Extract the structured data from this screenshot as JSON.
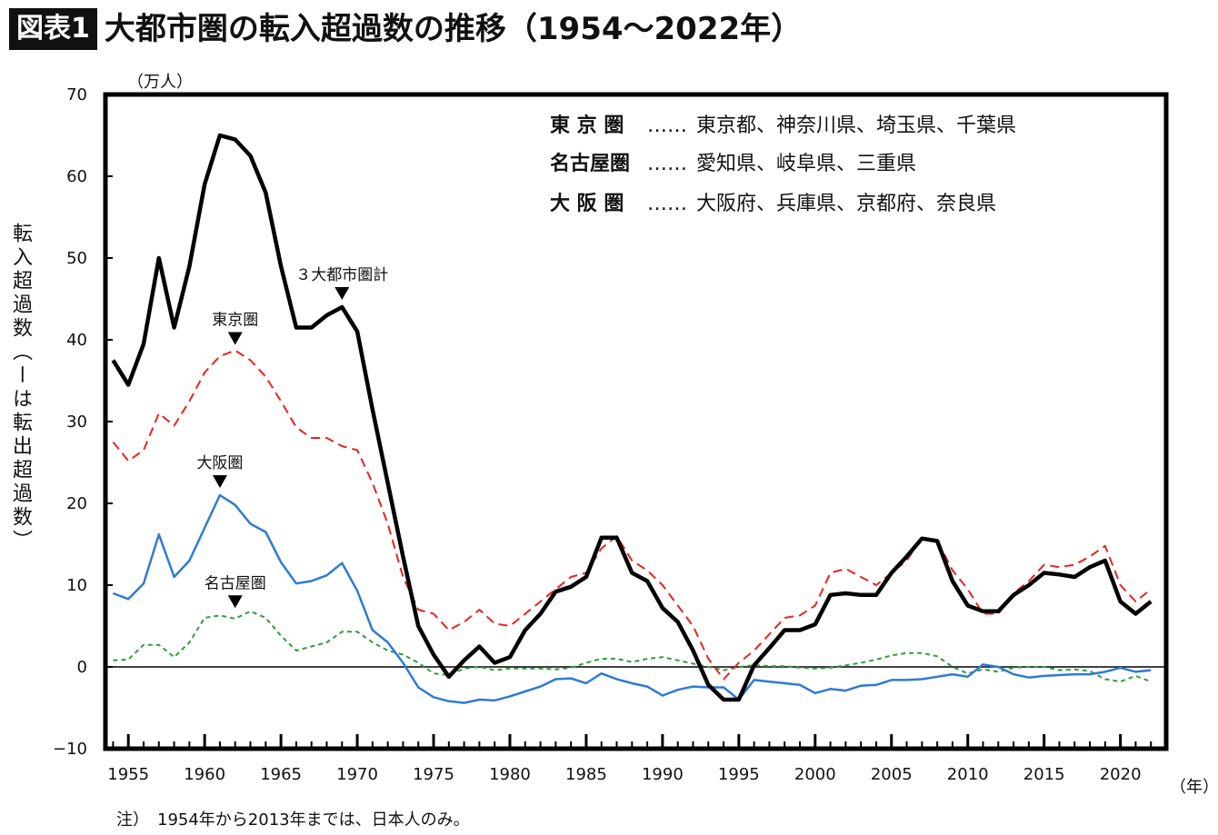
{
  "header": {
    "badge": "図表1",
    "title": "大都市圏の転入超過数の推移（1954〜2022年）"
  },
  "axis": {
    "unit": "（万人）",
    "ylabel": "転入超過数（ーは転出超過数）",
    "xunit": "（年）"
  },
  "note": "注）　1954年から2013年までは、日本人のみ。",
  "legend": [
    {
      "key": "東 京 圏",
      "dots": "……",
      "value": "東京都、神奈川県、埼玉県、千葉県"
    },
    {
      "key": "名古屋圏",
      "dots": "……",
      "value": "愛知県、岐阜県、三重県"
    },
    {
      "key": "大 阪 圏",
      "dots": "……",
      "value": "大阪府、兵庫県、京都府、奈良県"
    }
  ],
  "annotations": [
    {
      "text": "３大都市圏計",
      "year": 1969,
      "value": 44
    },
    {
      "text": "東京圏",
      "year": 1962,
      "value": 38.5
    },
    {
      "text": "大阪圏",
      "year": 1961,
      "value": 21
    },
    {
      "text": "名古屋圏",
      "year": 1962,
      "value": 6.3
    }
  ],
  "chart_data": {
    "type": "line",
    "ylim": [
      -10,
      70
    ],
    "yticks": [
      70,
      60,
      50,
      40,
      30,
      20,
      10,
      0,
      -10
    ],
    "xlim": [
      1953.5,
      2023
    ],
    "xticks": [
      1955,
      1960,
      1965,
      1970,
      1975,
      1980,
      1985,
      1990,
      1995,
      2000,
      2005,
      2010,
      2015,
      2020
    ],
    "x": [
      1954,
      1955,
      1956,
      1957,
      1958,
      1959,
      1960,
      1961,
      1962,
      1963,
      1964,
      1965,
      1966,
      1967,
      1968,
      1969,
      1970,
      1971,
      1972,
      1973,
      1974,
      1975,
      1976,
      1977,
      1978,
      1979,
      1980,
      1981,
      1982,
      1983,
      1984,
      1985,
      1986,
      1987,
      1988,
      1989,
      1990,
      1991,
      1992,
      1993,
      1994,
      1995,
      1996,
      1997,
      1998,
      1999,
      2000,
      2001,
      2002,
      2003,
      2004,
      2005,
      2006,
      2007,
      2008,
      2009,
      2010,
      2011,
      2012,
      2013,
      2014,
      2015,
      2016,
      2017,
      2018,
      2019,
      2020,
      2021,
      2022
    ],
    "series": [
      {
        "name": "３大都市圏計",
        "color": "#000000",
        "style": "solid-thick",
        "values": [
          37.5,
          34.5,
          39.5,
          50,
          41.5,
          49,
          59,
          65,
          64.5,
          62.5,
          58,
          49,
          41.5,
          41.5,
          43,
          44,
          41,
          31.5,
          22.5,
          13.5,
          5,
          1.5,
          -1.2,
          0.8,
          2.5,
          0.5,
          1.2,
          4.5,
          6.5,
          9.2,
          9.8,
          11,
          15.8,
          15.8,
          11.5,
          10.5,
          7.2,
          5.5,
          2,
          -2.2,
          -4,
          -4,
          0.2,
          2.3,
          4.5,
          4.5,
          5.2,
          8.8,
          9,
          8.8,
          8.8,
          11.5,
          13.5,
          15.7,
          15.4,
          10.5,
          7.5,
          6.8,
          6.8,
          8.8,
          10,
          11.5,
          11.3,
          11,
          12.2,
          13,
          8,
          6.5,
          8
        ]
      },
      {
        "name": "東京圏",
        "color": "#e8231f",
        "style": "dashed",
        "values": [
          27.5,
          25.2,
          26.5,
          31,
          29.5,
          32.5,
          36,
          38,
          38.7,
          37.5,
          35.5,
          32.5,
          29.3,
          28,
          28,
          27,
          26.5,
          22.5,
          17.5,
          11,
          7,
          6.5,
          4.5,
          5.5,
          7,
          5.3,
          5,
          6.5,
          8,
          9.5,
          11,
          11.5,
          14.5,
          16,
          13,
          11.8,
          10,
          7.5,
          5,
          1,
          -1.5,
          0.5,
          2,
          4,
          6,
          6.3,
          7.5,
          11.5,
          12,
          11,
          10,
          11.5,
          13,
          15.8,
          15.5,
          11.8,
          9.5,
          6.5,
          6.5,
          9,
          10.5,
          12.5,
          12.2,
          12.5,
          13.5,
          14.8,
          10,
          8,
          9.5
        ]
      },
      {
        "name": "大阪圏",
        "color": "#2f7bd3",
        "style": "solid",
        "values": [
          9,
          8.3,
          10.2,
          16.2,
          11,
          13,
          17,
          21,
          19.8,
          17.5,
          16.5,
          12.8,
          10.2,
          10.5,
          11.2,
          12.7,
          9.3,
          4.5,
          3,
          0.5,
          -2.5,
          -3.7,
          -4.2,
          -4.4,
          -4,
          -4.1,
          -3.6,
          -3,
          -2.4,
          -1.5,
          -1.4,
          -2,
          -0.8,
          -1.5,
          -2,
          -2.4,
          -3.5,
          -2.8,
          -2.4,
          -2.5,
          -2.5,
          -4,
          -1.6,
          -1.8,
          -2,
          -2.2,
          -3.2,
          -2.7,
          -2.9,
          -2.3,
          -2.2,
          -1.6,
          -1.6,
          -1.5,
          -1.2,
          -0.9,
          -1.2,
          0.3,
          0,
          -0.9,
          -1.3,
          -1.1,
          -1,
          -0.9,
          -0.9,
          -0.6,
          -0.1,
          -0.6,
          -0.4
        ]
      },
      {
        "name": "名古屋圏",
        "color": "#2e9e3e",
        "style": "dotted",
        "values": [
          0.8,
          0.9,
          2.7,
          2.7,
          1.2,
          3,
          6,
          6.3,
          5.9,
          6.8,
          6,
          3.8,
          2,
          2.5,
          3,
          4.3,
          4.3,
          3,
          2,
          1.5,
          0.5,
          -0.8,
          -1,
          -0.2,
          0,
          -0.4,
          -0.2,
          -0.2,
          -0.2,
          -0.3,
          -0.1,
          0.5,
          1,
          1,
          0.6,
          1,
          1.2,
          0.8,
          0.4,
          0,
          -0.4,
          0,
          0.2,
          0.1,
          0.1,
          -0.1,
          -0.2,
          -0.1,
          0.2,
          0.5,
          0.9,
          1.4,
          1.7,
          1.7,
          1.3,
          0,
          -0.8,
          -0.3,
          -0.6,
          -0.1,
          0,
          0,
          -0.4,
          -0.3,
          -0.5,
          -1.5,
          -1.8,
          -1.1,
          -1.8
        ]
      }
    ]
  }
}
